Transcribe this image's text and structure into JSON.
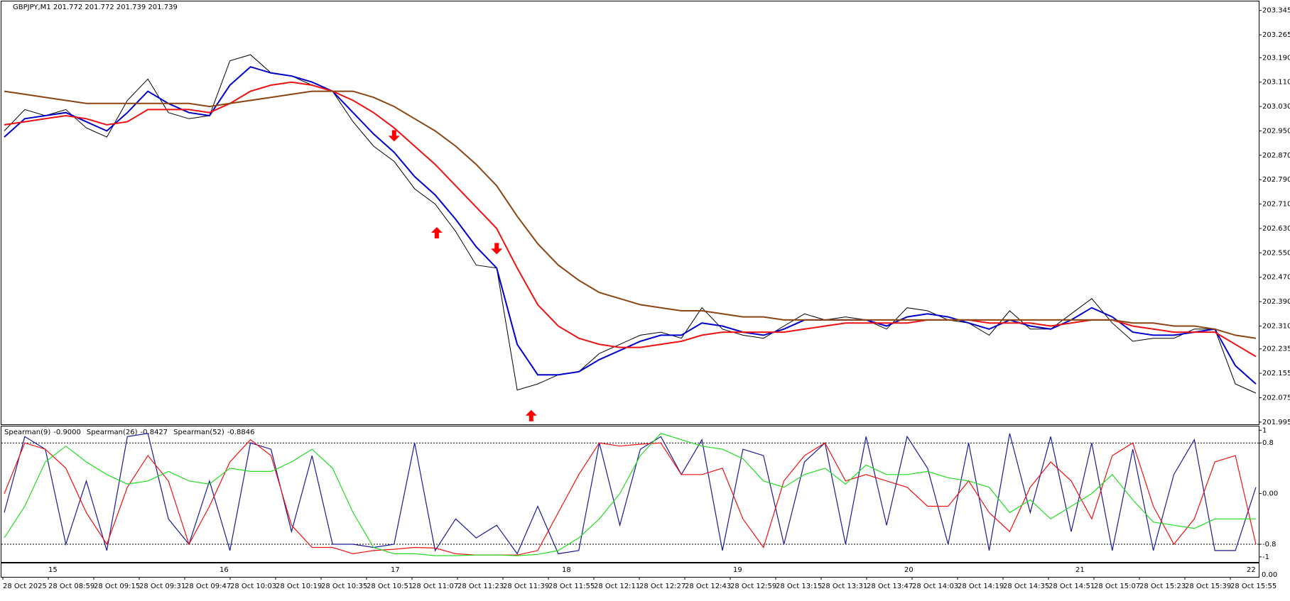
{
  "chart_data": [
    {
      "type": "line",
      "title": "GBPJPY,M1  201.772 201.772 201.739 201.739",
      "ylim": [
        201.99,
        203.37
      ],
      "yticks": [
        201.995,
        202.075,
        202.155,
        202.235,
        {
          "value": 202.31,
          "label": "202.310"
        },
        {
          "value": 202.39,
          "label": "202.390"
        },
        {
          "value": 202.47,
          "label": "202.470"
        },
        {
          "value": 202.55,
          "label": "202.550"
        },
        {
          "value": 202.63,
          "label": "202.630"
        },
        {
          "value": 202.71,
          "label": "202.710"
        },
        {
          "value": 202.79,
          "label": "202.790"
        },
        {
          "value": 202.87,
          "label": "202.870"
        },
        {
          "value": 202.95,
          "label": "202.950"
        },
        {
          "value": 203.03,
          "label": "203.030"
        },
        {
          "value": 203.11,
          "label": "203.110"
        },
        {
          "value": 203.19,
          "label": "203.190"
        },
        203.265,
        203.345
      ],
      "series": [
        {
          "color": "#000000",
          "values": [
            202.95,
            203.02,
            203.0,
            203.02,
            202.96,
            202.93,
            203.05,
            203.12,
            203.01,
            202.99,
            203.0,
            203.18,
            203.2,
            203.14,
            203.13,
            203.1,
            203.08,
            202.98,
            202.9,
            202.85,
            202.76,
            202.71,
            202.62,
            202.51,
            202.5,
            202.1,
            202.12,
            202.15,
            202.16,
            202.22,
            202.25,
            202.28,
            202.29,
            202.27,
            202.37,
            202.3,
            202.28,
            202.27,
            202.31,
            202.35,
            202.33,
            202.34,
            202.33,
            202.3,
            202.37,
            202.36,
            202.33,
            202.32,
            202.28,
            202.36,
            202.3,
            202.3,
            202.35,
            202.4,
            202.32,
            202.26,
            202.27,
            202.27,
            202.3,
            202.3,
            202.12,
            202.09
          ]
        },
        {
          "color": "#0000cc",
          "values": [
            202.93,
            202.99,
            203.0,
            203.01,
            202.98,
            202.95,
            203.01,
            203.08,
            203.04,
            203.01,
            203.0,
            203.1,
            203.16,
            203.14,
            203.13,
            203.11,
            203.08,
            203.01,
            202.94,
            202.88,
            202.8,
            202.74,
            202.66,
            202.57,
            202.5,
            202.25,
            202.15,
            202.15,
            202.16,
            202.2,
            202.23,
            202.26,
            202.28,
            202.28,
            202.32,
            202.31,
            202.29,
            202.28,
            202.3,
            202.33,
            202.33,
            202.33,
            202.33,
            202.31,
            202.34,
            202.35,
            202.34,
            202.32,
            202.3,
            202.33,
            202.31,
            202.3,
            202.33,
            202.37,
            202.34,
            202.29,
            202.28,
            202.28,
            202.29,
            202.3,
            202.18,
            202.12
          ]
        },
        {
          "color": "#ee1111",
          "values": [
            202.97,
            202.98,
            202.99,
            203.0,
            202.99,
            202.97,
            202.98,
            203.02,
            203.02,
            203.02,
            203.01,
            203.04,
            203.08,
            203.1,
            203.11,
            203.1,
            203.08,
            203.05,
            203.01,
            202.96,
            202.9,
            202.84,
            202.77,
            202.7,
            202.63,
            202.5,
            202.38,
            202.31,
            202.27,
            202.25,
            202.24,
            202.24,
            202.25,
            202.26,
            202.28,
            202.29,
            202.29,
            202.29,
            202.29,
            202.3,
            202.31,
            202.32,
            202.32,
            202.32,
            202.32,
            202.33,
            202.33,
            202.33,
            202.32,
            202.32,
            202.32,
            202.31,
            202.32,
            202.33,
            202.33,
            202.31,
            202.3,
            202.29,
            202.29,
            202.29,
            202.25,
            202.21
          ]
        },
        {
          "color": "#8b4513",
          "values": [
            203.08,
            203.07,
            203.06,
            203.05,
            203.04,
            203.04,
            203.04,
            203.04,
            203.04,
            203.04,
            203.03,
            203.04,
            203.05,
            203.06,
            203.07,
            203.08,
            203.08,
            203.08,
            203.06,
            203.03,
            202.99,
            202.95,
            202.9,
            202.84,
            202.77,
            202.67,
            202.58,
            202.51,
            202.46,
            202.42,
            202.4,
            202.38,
            202.37,
            202.36,
            202.36,
            202.35,
            202.34,
            202.34,
            202.33,
            202.33,
            202.33,
            202.33,
            202.33,
            202.33,
            202.33,
            202.33,
            202.33,
            202.33,
            202.33,
            202.33,
            202.33,
            202.33,
            202.33,
            202.33,
            202.33,
            202.32,
            202.32,
            202.31,
            202.31,
            202.3,
            202.28,
            202.27
          ]
        }
      ],
      "signals": {
        "color": "#ff0000",
        "down": {
          "x": [
            19,
            24
          ],
          "values": [
            202.92,
            202.55
          ]
        },
        "up": {
          "x": [
            21.08,
            25.68
          ],
          "values": [
            202.63,
            202.03
          ]
        }
      }
    },
    {
      "type": "line",
      "ylim": [
        -1.08,
        1.06
      ],
      "yticks": [
        1,
        0.8,
        {
          "value": 0,
          "label": "0.00"
        },
        -0.8,
        -1
      ],
      "levels": [
        0.8,
        -0.8
      ],
      "series": [
        {
          "name": "Spearman(9)",
          "current": -0.9,
          "current_label": "-0.9000",
          "color": "#1a1a99",
          "values": [
            -0.3,
            0.9,
            0.7,
            -0.8,
            0.2,
            -0.9,
            0.9,
            0.95,
            -0.4,
            -0.8,
            0.2,
            -0.9,
            0.8,
            0.7,
            -0.6,
            0.6,
            -0.8,
            -0.8,
            -0.85,
            -0.8,
            0.8,
            -0.9,
            -0.4,
            -0.7,
            -0.5,
            -0.95,
            -0.2,
            -0.95,
            -0.9,
            0.8,
            -0.5,
            0.7,
            0.9,
            0.3,
            0.85,
            -0.9,
            0.7,
            0.6,
            -0.8,
            0.5,
            0.8,
            -0.8,
            0.9,
            -0.5,
            0.9,
            0.4,
            -0.8,
            0.8,
            -0.9,
            0.95,
            -0.3,
            0.9,
            -0.6,
            0.8,
            -0.9,
            0.7,
            -0.9,
            0.3,
            0.85,
            -0.9,
            -0.9,
            0.1
          ]
        },
        {
          "name": "Spearman(26)",
          "current": -0.8427,
          "current_label": "-0.8427",
          "color": "#ee1111",
          "values": [
            0.0,
            0.8,
            0.7,
            0.4,
            -0.3,
            -0.8,
            0.1,
            0.6,
            0.2,
            -0.8,
            -0.2,
            0.5,
            0.85,
            0.6,
            -0.5,
            -0.85,
            -0.85,
            -0.95,
            -0.9,
            -0.88,
            -0.85,
            -0.86,
            -0.95,
            -0.97,
            -0.97,
            -0.97,
            -0.9,
            -0.3,
            0.3,
            0.8,
            0.75,
            0.78,
            0.8,
            0.3,
            0.3,
            0.4,
            -0.4,
            -0.85,
            0.2,
            0.6,
            0.8,
            0.2,
            0.3,
            0.2,
            0.1,
            -0.2,
            -0.2,
            0.2,
            -0.3,
            -0.6,
            0.1,
            0.5,
            0.2,
            -0.4,
            0.6,
            0.8,
            -0.2,
            -0.8,
            -0.4,
            0.5,
            0.6,
            -0.8
          ]
        },
        {
          "name": "Spearman(52)",
          "current": -0.8846,
          "current_label": "-0.8846",
          "color": "#22dd22",
          "values": [
            -0.7,
            -0.2,
            0.5,
            0.75,
            0.5,
            0.3,
            0.15,
            0.2,
            0.35,
            0.2,
            0.15,
            0.4,
            0.35,
            0.35,
            0.5,
            0.7,
            0.4,
            -0.3,
            -0.85,
            -0.95,
            -0.95,
            -0.98,
            -0.98,
            -0.97,
            -0.97,
            -0.98,
            -0.96,
            -0.9,
            -0.7,
            -0.4,
            0.0,
            0.6,
            0.95,
            0.85,
            0.75,
            0.7,
            0.55,
            0.2,
            0.1,
            0.3,
            0.4,
            0.15,
            0.45,
            0.3,
            0.3,
            0.35,
            0.25,
            0.2,
            0.1,
            -0.3,
            -0.1,
            -0.4,
            -0.2,
            0.0,
            0.3,
            -0.1,
            -0.45,
            -0.5,
            -0.55,
            -0.4,
            -0.4,
            -0.4
          ]
        }
      ]
    }
  ],
  "x_axis": {
    "day_labels": [
      15,
      16,
      17,
      18,
      19,
      20,
      21,
      22
    ],
    "time_labels": [
      "28 Oct 2025",
      "28 Oct 08:59",
      "28 Oct 09:15",
      "28 Oct 09:31",
      "28 Oct 09:47",
      "28 Oct 10:03",
      "28 Oct 10:19",
      "28 Oct 10:35",
      "28 Oct 10:51",
      "28 Oct 11:07",
      "28 Oct 11:23",
      "28 Oct 11:39",
      "28 Oct 11:55",
      "28 Oct 12:11",
      "28 Oct 12:27",
      "28 Oct 12:43",
      "28 Oct 12:59",
      "28 Oct 13:15",
      "28 Oct 13:31",
      "28 Oct 13:47",
      "28 Oct 14:03",
      "28 Oct 14:19",
      "28 Oct 14:35",
      "28 Oct 14:51",
      "28 Oct 15:07",
      "28 Oct 15:23",
      "28 Oct 15:39",
      "28 Oct 15:55"
    ]
  },
  "scale_floor_label": "0.00"
}
